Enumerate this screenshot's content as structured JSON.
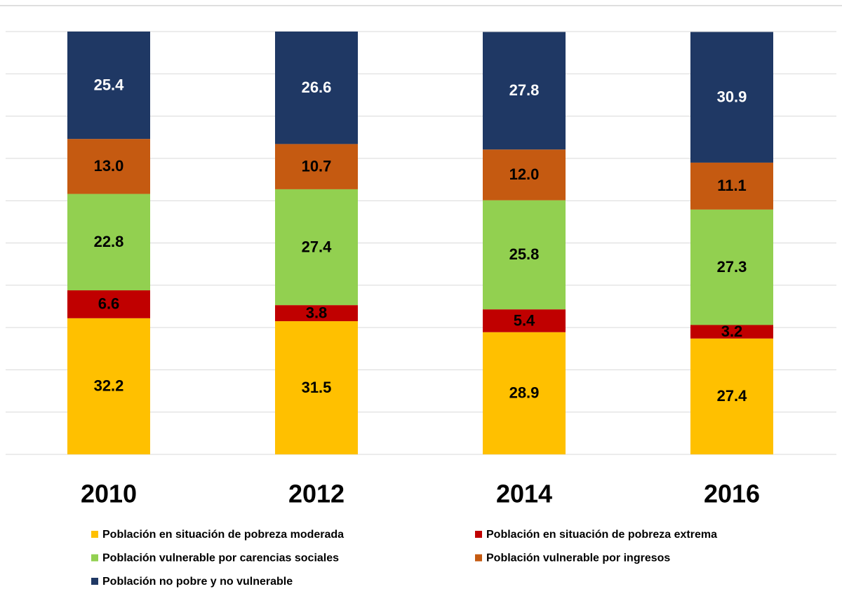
{
  "chart_data": {
    "type": "stacked_bar",
    "categories": [
      "2010",
      "2012",
      "2014",
      "2016"
    ],
    "series": [
      {
        "name": "Población en situación de pobreza moderada",
        "color": "#FFC000",
        "label_color": "#000000",
        "values": [
          32.2,
          31.5,
          28.9,
          27.4
        ],
        "value_labels": [
          "32.2",
          "31.5",
          "28.9",
          "27.4"
        ]
      },
      {
        "name": "Población en situación de pobreza extrema",
        "color": "#C00000",
        "label_color": "#000000",
        "values": [
          6.6,
          3.8,
          5.4,
          3.2
        ],
        "value_labels": [
          "6.6",
          "3.8",
          "5.4",
          "3.2"
        ]
      },
      {
        "name": "Población vulnerable por carencias sociales",
        "color": "#92D050",
        "label_color": "#000000",
        "values": [
          22.8,
          27.4,
          25.8,
          27.3
        ],
        "value_labels": [
          "22.8",
          "27.4",
          "25.8",
          "27.3"
        ]
      },
      {
        "name": "Población vulnerable por ingresos",
        "color": "#C55A11",
        "label_color": "#000000",
        "values": [
          13.0,
          10.7,
          12.0,
          11.1
        ],
        "value_labels": [
          "13.0",
          "10.7",
          "12.0",
          "11.1"
        ]
      },
      {
        "name": "Población no pobre y no vulnerable",
        "color": "#1F3864",
        "label_color": "#FFFFFF",
        "values": [
          25.4,
          26.6,
          27.8,
          30.9
        ],
        "value_labels": [
          "25.4",
          "26.6",
          "27.8",
          "30.9"
        ]
      }
    ],
    "ylim": [
      0,
      100
    ],
    "yticks": [
      0,
      10,
      20,
      30,
      40,
      50,
      60,
      70,
      80,
      90,
      100
    ],
    "grid": true
  }
}
